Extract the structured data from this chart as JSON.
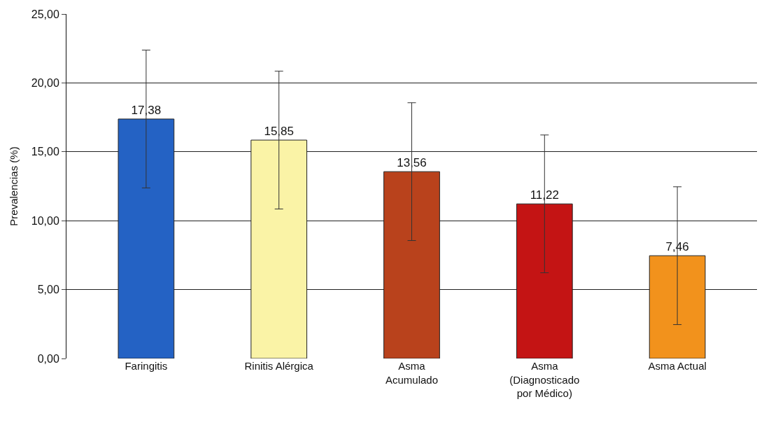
{
  "chart_data": {
    "type": "bar",
    "ylabel": "Prevalencias (%)",
    "categories": [
      "Faringitis",
      "Rinitis Alérgica",
      "Asma\nAcumulado",
      "Asma\n(Diagnosticado\npor Médico)",
      "Asma Actual"
    ],
    "values": [
      17.38,
      15.85,
      13.56,
      11.22,
      7.46
    ],
    "colors": [
      "#2462c4",
      "#faf3a6",
      "#b9421c",
      "#c41414",
      "#f2921c"
    ],
    "errors": [
      5,
      5,
      5,
      5,
      5
    ],
    "value_labels": [
      "17,38",
      "15,85",
      "13,56",
      "11,22",
      "7,46"
    ],
    "ylim": [
      0,
      25
    ],
    "yticks": [
      {
        "value": 0,
        "label": "0,00"
      },
      {
        "value": 5,
        "label": "5,00"
      },
      {
        "value": 10,
        "label": "10,00"
      },
      {
        "value": 15,
        "label": "15,00"
      },
      {
        "value": 20,
        "label": "20,00"
      },
      {
        "value": 25,
        "label": "25,00"
      }
    ],
    "grid": "y"
  }
}
